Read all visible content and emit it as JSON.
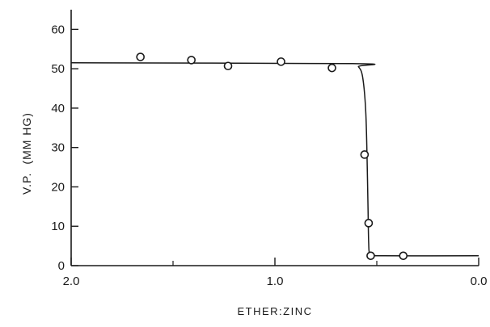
{
  "chart_data": {
    "type": "scatter",
    "title": "",
    "xlabel": "ETHER:ZINC",
    "ylabel": "V.P.",
    "ylabel_unit": "(MM HG)",
    "xlim": [
      2.0,
      0.0
    ],
    "ylim": [
      0,
      65
    ],
    "x_reversed": true,
    "grid": false,
    "legend": "none",
    "x_ticks": [
      {
        "value": 2.0,
        "label": "2.0"
      },
      {
        "value": 1.0,
        "label": "1.0"
      },
      {
        "value": 0.0,
        "label": "0.0"
      }
    ],
    "x_minor_ticks": [
      1.5,
      0.5
    ],
    "y_ticks": [
      {
        "value": 0,
        "label": "0"
      },
      {
        "value": 10,
        "label": "10"
      },
      {
        "value": 20,
        "label": "20"
      },
      {
        "value": 30,
        "label": "30"
      },
      {
        "value": 40,
        "label": "40"
      },
      {
        "value": 50,
        "label": "50"
      },
      {
        "value": 60,
        "label": "60"
      }
    ],
    "series": [
      {
        "kind": "points",
        "marker": "open-circle",
        "x": [
          1.66,
          1.41,
          1.23,
          0.97,
          0.72,
          0.56,
          0.54,
          0.53,
          0.37
        ],
        "y": [
          53.0,
          52.2,
          50.7,
          51.8,
          50.2,
          28.2,
          10.8,
          2.5,
          2.5
        ]
      },
      {
        "kind": "curve",
        "x": [
          2.0,
          0.62,
          0.59,
          0.57,
          0.555,
          0.548,
          0.543,
          0.54,
          0.535,
          0.51,
          0.47,
          0.0
        ],
        "y": [
          51.5,
          51.3,
          50.5,
          48.0,
          40.0,
          28.0,
          14.0,
          6.0,
          3.0,
          2.6,
          2.5,
          2.5
        ]
      }
    ],
    "colors": {
      "ink": "#1a1a1a"
    }
  }
}
